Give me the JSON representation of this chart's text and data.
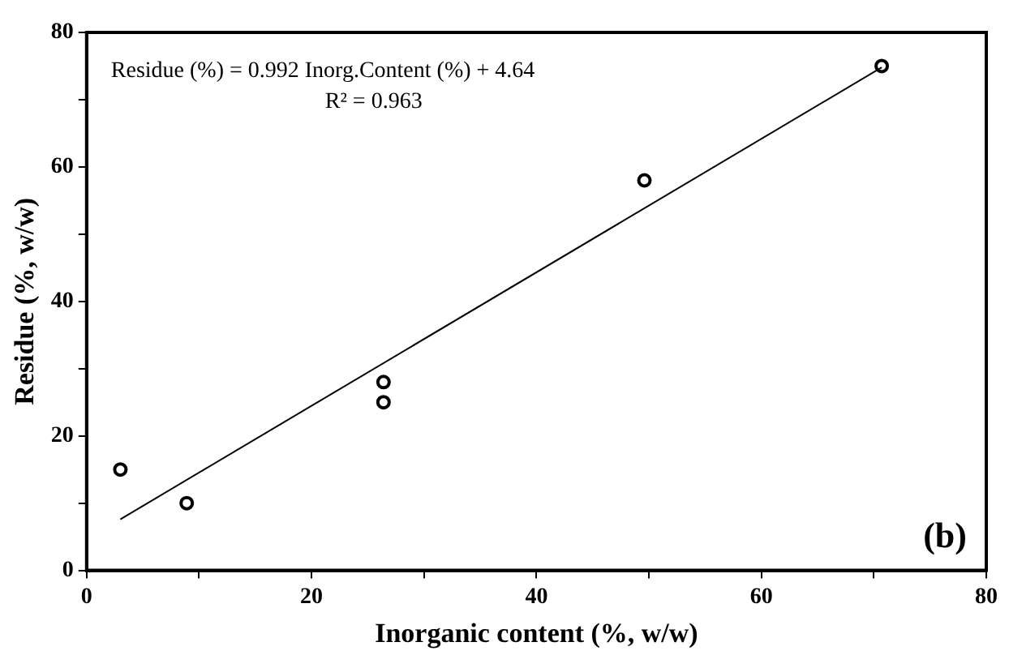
{
  "chart_data": {
    "type": "scatter",
    "xlabel": "Inorganic content (%, w/w)",
    "ylabel": "Residue (%, w/w)",
    "series": [
      {
        "type": "scatter",
        "color": "#000000",
        "x": [
          3.0,
          8.9,
          26.4,
          26.4,
          49.6,
          70.7
        ],
        "values": [
          15,
          10,
          28,
          25,
          58,
          75
        ],
        "marker": "circle"
      },
      {
        "type": "line",
        "color": "#000000",
        "x": [
          3.0,
          70.7
        ],
        "values": [
          7.6,
          74.8
        ],
        "marker": "none"
      }
    ],
    "xlim": [
      0,
      80
    ],
    "xticks": [
      0,
      {
        "value": 10,
        "label": null
      },
      20,
      {
        "value": 30,
        "label": null
      },
      40,
      {
        "value": 50,
        "label": null
      },
      60,
      {
        "value": 70,
        "label": null
      },
      80
    ],
    "ylim": [
      0,
      80
    ],
    "yticks": [
      0,
      {
        "value": 10,
        "label": null
      },
      20,
      {
        "value": 30,
        "label": null
      },
      40,
      {
        "value": 50,
        "label": null
      },
      60,
      {
        "value": 70,
        "label": null
      },
      80
    ],
    "grid": false,
    "legend": false,
    "annotations": [
      "Residue (%) = 0.992 Inorg.Content (%) + 4.64",
      "R² = 0.963",
      "(b)"
    ]
  }
}
